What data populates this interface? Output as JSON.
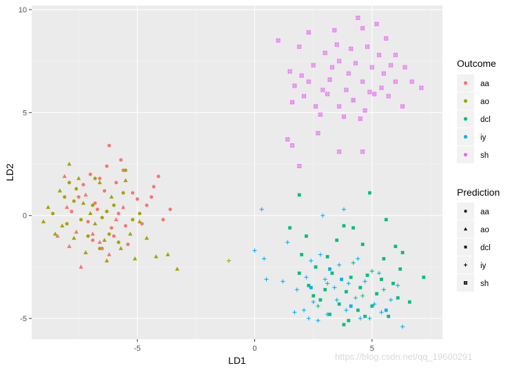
{
  "chart_data": {
    "type": "scatter",
    "title": "",
    "xlabel": "LD1",
    "ylabel": "LD2",
    "xlim": [
      -9.5,
      8.0
    ],
    "ylim": [
      -6.0,
      10.2
    ],
    "xticks": [
      -5,
      0,
      5
    ],
    "yticks": [
      -5,
      0,
      5,
      10
    ],
    "grid": true,
    "legend_position": "right",
    "color_legend": {
      "title": "Outcome",
      "entries": [
        {
          "label": "aa",
          "color": "#F8766D"
        },
        {
          "label": "ao",
          "color": "#A3A500"
        },
        {
          "label": "dcl",
          "color": "#00BF7D"
        },
        {
          "label": "iy",
          "color": "#00B0F6"
        },
        {
          "label": "sh",
          "color": "#E76BF3"
        }
      ]
    },
    "shape_legend": {
      "title": "Prediction",
      "entries": [
        {
          "label": "aa",
          "shape": "circle"
        },
        {
          "label": "ao",
          "shape": "triangle"
        },
        {
          "label": "dcl",
          "shape": "square"
        },
        {
          "label": "iy",
          "shape": "plus"
        },
        {
          "label": "sh",
          "shape": "boxed-x"
        }
      ]
    },
    "series": [
      {
        "outcome": "aa",
        "prediction": "aa",
        "points": [
          [
            -6.2,
            3.4
          ],
          [
            -5.6,
            2.2
          ],
          [
            -4.1,
            1.9
          ],
          [
            -4.3,
            1.4
          ],
          [
            -3.6,
            0.3
          ],
          [
            -3.9,
            -0.2
          ],
          [
            -5.0,
            0.8
          ],
          [
            -5.5,
            -0.5
          ],
          [
            -6.4,
            1.2
          ],
          [
            -6.8,
            0.6
          ],
          [
            -7.1,
            -0.3
          ],
          [
            -7.5,
            0.9
          ],
          [
            -6.0,
            -1.0
          ],
          [
            -5.8,
            0.1
          ],
          [
            -6.6,
            1.8
          ],
          [
            -7.3,
            1.5
          ],
          [
            -6.9,
            -1.2
          ],
          [
            -5.2,
            1.1
          ],
          [
            -4.6,
            0.5
          ],
          [
            -6.3,
            2.4
          ],
          [
            -5.9,
            1.6
          ],
          [
            -7.8,
            0.2
          ],
          [
            -6.1,
            -0.6
          ],
          [
            -5.4,
            -1.4
          ],
          [
            -4.8,
            -0.4
          ],
          [
            -6.7,
            0.3
          ],
          [
            -7.0,
            2.0
          ],
          [
            -5.7,
            2.7
          ],
          [
            -4.4,
            0.9
          ],
          [
            -6.5,
            -1.6
          ]
        ]
      },
      {
        "outcome": "aa",
        "prediction": "ao",
        "points": [
          [
            -7.2,
            1.0
          ],
          [
            -7.6,
            -0.8
          ],
          [
            -8.0,
            0.4
          ],
          [
            -6.9,
            -0.9
          ],
          [
            -8.4,
            -1.0
          ],
          [
            -7.4,
            -2.5
          ],
          [
            -6.2,
            -1.9
          ],
          [
            -5.6,
            0.4
          ],
          [
            -8.1,
            1.9
          ],
          [
            -6.6,
            -1.3
          ],
          [
            -7.9,
            -1.5
          ],
          [
            -5.9,
            -0.2
          ]
        ]
      },
      {
        "outcome": "ao",
        "prediction": "ao",
        "points": [
          [
            -8.3,
            1.2
          ],
          [
            -7.9,
            2.5
          ],
          [
            -8.8,
            0.4
          ],
          [
            -9.0,
            -0.3
          ],
          [
            -8.5,
            -0.9
          ],
          [
            -7.5,
            1.8
          ],
          [
            -7.2,
            -1.8
          ],
          [
            -6.8,
            -0.4
          ],
          [
            -6.3,
            -2.2
          ],
          [
            -5.7,
            -1.6
          ],
          [
            -5.1,
            -2.1
          ],
          [
            -4.6,
            -1.1
          ],
          [
            -4.2,
            -2.0
          ],
          [
            -3.7,
            -1.9
          ],
          [
            -3.3,
            -2.6
          ],
          [
            -5.3,
            -0.9
          ],
          [
            -6.1,
            0.9
          ],
          [
            -6.6,
            1.6
          ],
          [
            -7.0,
            0.1
          ],
          [
            -7.7,
            -1.1
          ],
          [
            -8.2,
            -0.5
          ],
          [
            -5.5,
            1.7
          ],
          [
            -4.9,
            -0.3
          ],
          [
            -6.4,
            -1.2
          ],
          [
            -7.3,
            0.6
          ]
        ]
      },
      {
        "outcome": "ao",
        "prediction": "aa",
        "points": [
          [
            -8.6,
            0.1
          ],
          [
            -8.1,
            0.9
          ],
          [
            -7.6,
            1.3
          ],
          [
            -7.4,
            -0.2
          ],
          [
            -6.9,
            0.5
          ],
          [
            -6.5,
            -0.1
          ],
          [
            -6.0,
            0.5
          ],
          [
            -5.5,
            2.2
          ],
          [
            -5.2,
            -0.2
          ],
          [
            -6.8,
            1.8
          ],
          [
            -7.7,
            0.7
          ],
          [
            -8.0,
            -0.4
          ],
          [
            -6.2,
            -0.9
          ],
          [
            -5.6,
            1.1
          ],
          [
            -4.9,
            0.1
          ],
          [
            -7.1,
            -1.0
          ],
          [
            -6.6,
            -1.6
          ],
          [
            -7.9,
            1.6
          ],
          [
            -5.8,
            -1.3
          ],
          [
            -6.3,
            0.2
          ]
        ]
      },
      {
        "outcome": "ao",
        "prediction": "iy",
        "points": [
          [
            -1.1,
            -2.2
          ]
        ]
      },
      {
        "outcome": "dcl",
        "prediction": "dcl",
        "points": [
          [
            1.9,
            1.0
          ],
          [
            4.9,
            1.1
          ],
          [
            5.6,
            -0.2
          ],
          [
            3.8,
            -0.5
          ],
          [
            4.2,
            -0.6
          ],
          [
            1.5,
            -0.6
          ],
          [
            2.2,
            -1.0
          ],
          [
            3.5,
            -1.2
          ],
          [
            4.6,
            -1.4
          ],
          [
            6.0,
            -1.5
          ],
          [
            6.3,
            -1.8
          ],
          [
            2.0,
            -1.9
          ],
          [
            3.1,
            -2.0
          ],
          [
            5.5,
            -2.1
          ],
          [
            6.2,
            -2.6
          ],
          [
            7.2,
            -3.0
          ],
          [
            1.9,
            -2.8
          ],
          [
            2.6,
            -2.5
          ],
          [
            3.3,
            -2.8
          ],
          [
            4.1,
            -3.0
          ],
          [
            4.8,
            -2.9
          ],
          [
            5.9,
            -3.3
          ],
          [
            2.3,
            -3.4
          ],
          [
            3.0,
            -3.6
          ],
          [
            3.9,
            -3.7
          ],
          [
            4.5,
            -3.5
          ],
          [
            5.2,
            -3.8
          ],
          [
            6.1,
            -4.0
          ],
          [
            6.6,
            -4.2
          ],
          [
            2.8,
            -4.1
          ],
          [
            3.6,
            -4.3
          ],
          [
            4.4,
            -4.6
          ],
          [
            5.0,
            -4.4
          ],
          [
            5.7,
            -4.9
          ],
          [
            3.2,
            -4.8
          ],
          [
            4.0,
            -5.1
          ],
          [
            3.8,
            -5.3
          ],
          [
            4.7,
            -4.9
          ],
          [
            2.5,
            -3.9
          ],
          [
            5.4,
            -3.1
          ]
        ]
      },
      {
        "outcome": "dcl",
        "prediction": "iy",
        "points": [
          [
            4.2,
            -2.3
          ],
          [
            5.0,
            -2.7
          ],
          [
            3.1,
            -3.3
          ],
          [
            4.6,
            -3.9
          ],
          [
            2.7,
            -4.4
          ],
          [
            5.5,
            -3.6
          ]
        ]
      },
      {
        "outcome": "iy",
        "prediction": "iy",
        "points": [
          [
            0.3,
            0.3
          ],
          [
            3.8,
            0.3
          ],
          [
            2.9,
            0.0
          ],
          [
            1.4,
            -1.3
          ],
          [
            0.4,
            -2.1
          ],
          [
            0.0,
            -1.7
          ],
          [
            0.5,
            -3.1
          ],
          [
            1.2,
            -3.2
          ],
          [
            2.4,
            -2.2
          ],
          [
            2.8,
            -1.9
          ],
          [
            3.6,
            -2.4
          ],
          [
            4.4,
            -2.1
          ],
          [
            1.8,
            -3.6
          ],
          [
            2.2,
            -3.0
          ],
          [
            3.0,
            -3.1
          ],
          [
            3.4,
            -3.5
          ],
          [
            4.0,
            -3.3
          ],
          [
            4.7,
            -3.2
          ],
          [
            5.3,
            -2.8
          ],
          [
            6.1,
            -3.4
          ],
          [
            2.5,
            -4.2
          ],
          [
            2.1,
            -4.6
          ],
          [
            3.5,
            -4.1
          ],
          [
            4.3,
            -4.0
          ],
          [
            5.1,
            -4.3
          ],
          [
            5.8,
            -4.1
          ],
          [
            2.3,
            -5.0
          ],
          [
            3.1,
            -4.8
          ],
          [
            3.9,
            -4.6
          ],
          [
            4.9,
            -5.0
          ],
          [
            5.4,
            -4.7
          ],
          [
            6.3,
            -5.4
          ],
          [
            1.7,
            -4.7
          ],
          [
            2.7,
            -5.1
          ],
          [
            4.5,
            -5.0
          ]
        ]
      },
      {
        "outcome": "iy",
        "prediction": "dcl",
        "points": [
          [
            3.2,
            -2.6
          ],
          [
            2.4,
            -3.5
          ],
          [
            4.1,
            -4.4
          ],
          [
            5.6,
            -4.6
          ],
          [
            3.7,
            -3.1
          ]
        ]
      },
      {
        "outcome": "sh",
        "prediction": "sh",
        "points": [
          [
            1.0,
            8.5
          ],
          [
            2.3,
            8.9
          ],
          [
            3.4,
            9.0
          ],
          [
            4.4,
            9.6
          ],
          [
            4.6,
            9.1
          ],
          [
            5.2,
            9.3
          ],
          [
            5.6,
            8.6
          ],
          [
            6.0,
            7.8
          ],
          [
            6.4,
            7.2
          ],
          [
            6.7,
            6.5
          ],
          [
            7.1,
            6.2
          ],
          [
            6.0,
            6.5
          ],
          [
            5.5,
            6.9
          ],
          [
            5.3,
            7.8
          ],
          [
            4.8,
            8.2
          ],
          [
            4.1,
            8.1
          ],
          [
            3.6,
            7.5
          ],
          [
            3.0,
            7.9
          ],
          [
            2.5,
            7.3
          ],
          [
            1.9,
            8.2
          ],
          [
            1.5,
            7.0
          ],
          [
            1.7,
            6.3
          ],
          [
            2.1,
            5.8
          ],
          [
            2.6,
            5.3
          ],
          [
            3.1,
            5.9
          ],
          [
            3.6,
            5.3
          ],
          [
            4.2,
            5.6
          ],
          [
            4.7,
            5.1
          ],
          [
            5.1,
            5.9
          ],
          [
            5.7,
            5.8
          ],
          [
            6.3,
            5.3
          ],
          [
            2.3,
            6.5
          ],
          [
            3.2,
            6.6
          ],
          [
            4.0,
            6.9
          ],
          [
            4.6,
            6.5
          ],
          [
            5.0,
            7.2
          ],
          [
            5.4,
            6.2
          ],
          [
            2.8,
            4.9
          ],
          [
            3.8,
            4.8
          ],
          [
            4.5,
            4.7
          ],
          [
            1.6,
            5.5
          ],
          [
            2.0,
            6.8
          ],
          [
            3.3,
            7.2
          ],
          [
            3.9,
            6.1
          ],
          [
            5.8,
            7.3
          ],
          [
            1.4,
            3.7
          ],
          [
            1.6,
            3.4
          ],
          [
            1.9,
            2.4
          ],
          [
            3.6,
            3.1
          ],
          [
            4.6,
            3.1
          ],
          [
            2.7,
            4.0
          ],
          [
            3.5,
            8.3
          ],
          [
            4.3,
            7.4
          ],
          [
            2.9,
            6.1
          ],
          [
            4.9,
            6.0
          ]
        ]
      }
    ]
  }
}
